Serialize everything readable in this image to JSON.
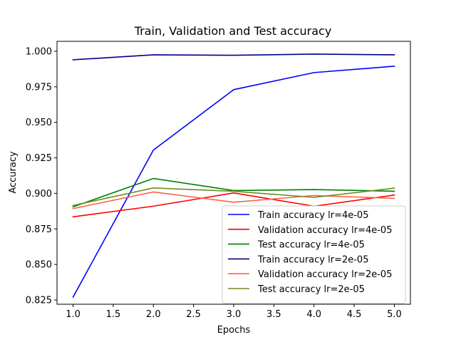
{
  "chart_data": {
    "type": "line",
    "title": "Train, Validation and Test accuracy",
    "xlabel": "Epochs",
    "ylabel": "Accuracy",
    "x": [
      1,
      2,
      3,
      4,
      5
    ],
    "xlim": [
      0.8,
      5.2
    ],
    "ylim": [
      0.822,
      1.007
    ],
    "xticks": [
      1.0,
      1.5,
      2.0,
      2.5,
      3.0,
      3.5,
      4.0,
      4.5,
      5.0
    ],
    "xtick_labels": [
      "1.0",
      "1.5",
      "2.0",
      "2.5",
      "3.0",
      "3.5",
      "4.0",
      "4.5",
      "5.0"
    ],
    "yticks": [
      0.825,
      0.85,
      0.875,
      0.9,
      0.925,
      0.95,
      0.975,
      1.0
    ],
    "ytick_labels": [
      "0.825",
      "0.850",
      "0.875",
      "0.900",
      "0.925",
      "0.950",
      "0.975",
      "1.000"
    ],
    "legend_position": "lower-right",
    "grid": false,
    "series": [
      {
        "name": "Train accuracy lr=4e-05",
        "color": "#0000ff",
        "values": [
          0.827,
          0.9305,
          0.973,
          0.985,
          0.9895
        ]
      },
      {
        "name": "Validation accuracy lr=4e-05",
        "color": "#ff0000",
        "values": [
          0.8835,
          0.891,
          0.9003,
          0.891,
          0.8988
        ]
      },
      {
        "name": "Test accuracy lr=4e-05",
        "color": "#008000",
        "values": [
          0.8905,
          0.9105,
          0.902,
          0.9027,
          0.9015
        ]
      },
      {
        "name": "Train accuracy lr=2e-05",
        "color": "#00008b",
        "values": [
          0.994,
          0.9975,
          0.9972,
          0.998,
          0.9975
        ]
      },
      {
        "name": "Validation accuracy lr=2e-05",
        "color": "#ff6347",
        "values": [
          0.8893,
          0.901,
          0.8938,
          0.8985,
          0.8965
        ]
      },
      {
        "name": "Test accuracy lr=2e-05",
        "color": "#6b8e23",
        "values": [
          0.8915,
          0.9038,
          0.9015,
          0.8972,
          0.9037
        ]
      }
    ]
  }
}
